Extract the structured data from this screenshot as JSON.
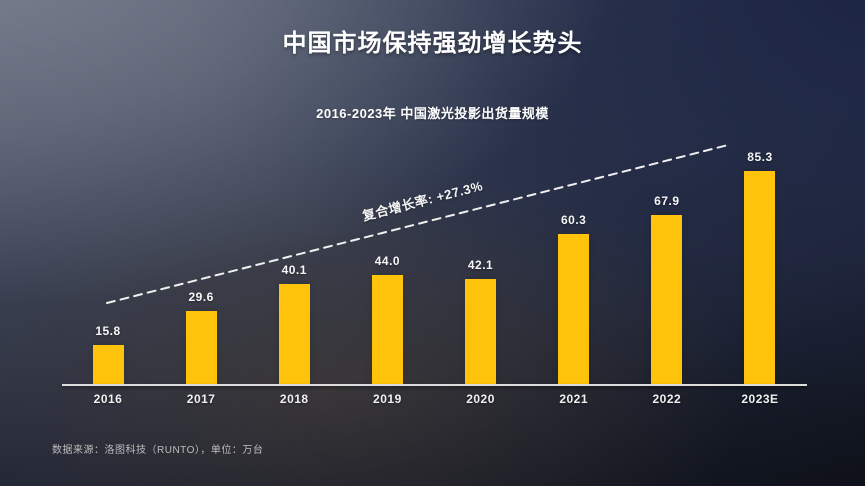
{
  "page": {
    "title": "中国市场保持强劲增长势头",
    "subtitle": "2016-2023年  中国激光投影出货量规模",
    "source_note": "数据来源：洛图科技（RUNTO），单位：万台"
  },
  "chart_data": {
    "type": "bar",
    "title": "2016-2023年 中国激光投影出货量规模",
    "categories": [
      "2016",
      "2017",
      "2018",
      "2019",
      "2020",
      "2021",
      "2022",
      "2023E"
    ],
    "values": [
      15.8,
      29.6,
      40.1,
      44.0,
      42.1,
      60.3,
      67.9,
      85.3
    ],
    "value_labels": [
      "15.8",
      "29.6",
      "40.1",
      "44.0",
      "42.1",
      "60.3",
      "67.9",
      "85.3"
    ],
    "annotation": "复合增长率: +27.3%",
    "unit": "万台",
    "bar_color": "#FFC30B",
    "axis_color": "#DCDCDC",
    "label_color": "#F8F8F8",
    "trendline_style": "dashed",
    "ylim": [
      0,
      90
    ],
    "grid": false,
    "legend": "none"
  },
  "colors": {
    "bar": "#FFC30B",
    "axis": "#DCDCDC",
    "title_text": "#FFFFFF",
    "source_text": "#BDBDBD",
    "background_top_left": "#767E90",
    "background_top_right": "#1B2443",
    "background_bottom": "#0E1119"
  }
}
